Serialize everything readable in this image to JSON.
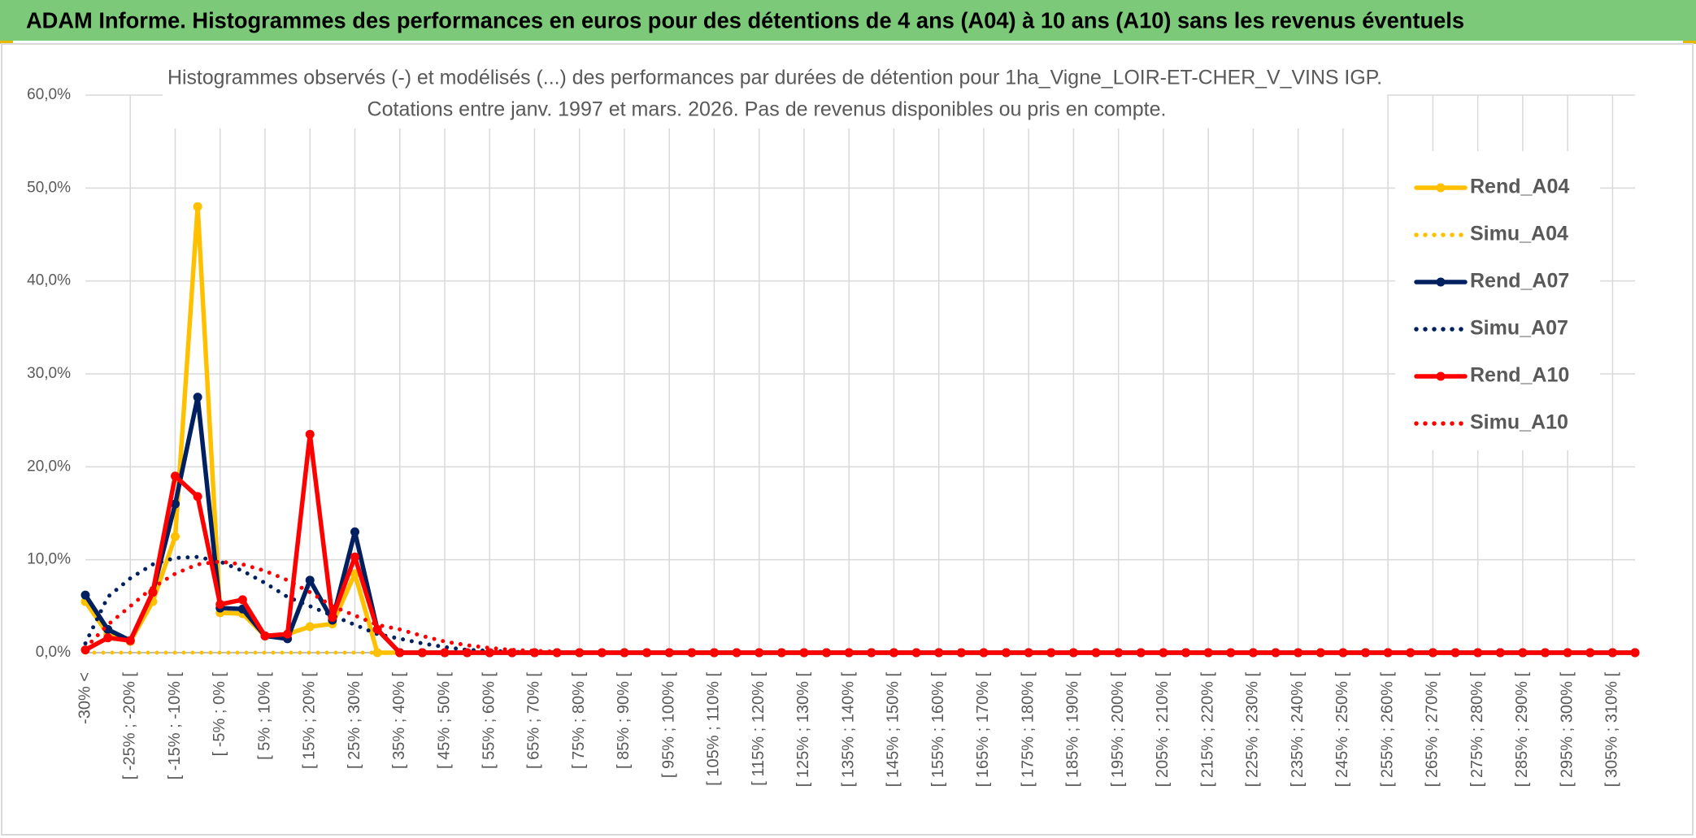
{
  "header_title": "ADAM Informe. Histogrammes des performances en euros pour des détentions de 4 ans (A04) à 10 ans (A10) sans les revenus éventuels",
  "chart_data": {
    "type": "line",
    "title": "Histogrammes observés (-) et modélisés (...) des performances par durées de détention pour 1ha_Vigne_LOIR-ET-CHER_V_VINS IGP.",
    "subtitle": "Cotations entre janv. 1997 et mars. 2026. Pas de revenus disponibles ou pris en compte.",
    "categories": [
      "-30% <",
      null,
      "[ -25% ; -20% [",
      null,
      "[ -15% ; -10% [",
      null,
      "[ -5% ; 0% [",
      null,
      "[ 5% ; 10% [",
      null,
      "[ 15% ; 20% [",
      null,
      "[ 25% ; 30% [",
      null,
      "[ 35% ; 40% [",
      null,
      "[ 45% ; 50% [",
      null,
      "[ 55% ; 60% [",
      null,
      "[ 65% ; 70% [",
      null,
      "[ 75% ; 80% [",
      null,
      "[ 85% ; 90% [",
      null,
      "[ 95% ; 100% [",
      null,
      "[ 105% ; 110% [",
      null,
      "[ 115% ; 120% [",
      null,
      "[ 125% ; 130% [",
      null,
      "[ 135% ; 140% [",
      null,
      "[ 145% ; 150% [",
      null,
      "[ 155% ; 160% [",
      null,
      "[ 165% ; 170% [",
      null,
      "[ 175% ; 180% [",
      null,
      "[ 185% ; 190% [",
      null,
      "[ 195% ; 200% [",
      null,
      "[ 205% ; 210% [",
      null,
      "[ 215% ; 220% [",
      null,
      "[ 225% ; 230% [",
      null,
      "[ 235% ; 240% [",
      null,
      "[ 245% ; 250% [",
      null,
      "[ 255% ; 260% [",
      null,
      "[ 265% ; 270% [",
      null,
      "[ 275% ; 280% [",
      null,
      "[ 285% ; 290% [",
      null,
      "[ 295% ; 300% [",
      null,
      "[ 305% ; 310% [",
      null
    ],
    "series": [
      {
        "name": "Rend_A04",
        "color": "#ffc000",
        "line_style": "solid",
        "markers": true,
        "values": [
          5.5,
          2.0,
          1.2,
          5.5,
          12.5,
          48,
          4.3,
          4.2,
          1.8,
          2.0,
          2.8,
          3.1,
          8.5,
          0,
          0,
          0,
          0,
          0,
          0,
          0,
          0,
          0,
          0,
          0,
          0,
          0,
          0,
          0,
          0,
          0,
          0,
          0,
          0,
          0,
          0,
          0,
          0,
          0,
          0,
          0,
          0,
          0,
          0,
          0,
          0,
          0,
          0,
          0,
          0,
          0,
          0,
          0,
          0,
          0,
          0,
          0,
          0,
          0,
          0,
          0,
          0,
          0,
          0,
          0,
          0,
          0,
          0,
          0,
          0,
          0
        ]
      },
      {
        "name": "Simu_A04",
        "color": "#ffc000",
        "line_style": "dotted",
        "markers": false,
        "values": [
          0,
          0,
          0,
          0,
          0,
          0,
          0,
          0,
          0,
          0,
          0,
          0,
          0,
          0,
          0,
          0,
          0,
          0,
          0,
          0,
          0,
          0,
          0,
          0,
          0,
          0,
          0,
          0,
          0,
          0,
          0,
          0,
          0,
          0,
          0,
          0,
          0,
          0,
          0,
          0,
          0,
          0,
          0,
          0,
          0,
          0,
          0,
          0,
          0,
          0,
          0,
          0,
          0,
          0,
          0,
          0,
          0,
          0,
          0,
          0,
          0,
          0,
          0,
          0,
          0,
          0,
          0,
          0,
          0,
          0
        ]
      },
      {
        "name": "Rend_A07",
        "color": "#002060",
        "line_style": "solid",
        "markers": true,
        "values": [
          6.2,
          2.5,
          1.3,
          6.5,
          16,
          27.5,
          4.8,
          4.7,
          1.8,
          1.5,
          7.8,
          3.5,
          13,
          2.5,
          0,
          0,
          0,
          0,
          0,
          0,
          0,
          0,
          0,
          0,
          0,
          0,
          0,
          0,
          0,
          0,
          0,
          0,
          0,
          0,
          0,
          0,
          0,
          0,
          0,
          0,
          0,
          0,
          0,
          0,
          0,
          0,
          0,
          0,
          0,
          0,
          0,
          0,
          0,
          0,
          0,
          0,
          0,
          0,
          0,
          0,
          0,
          0,
          0,
          0,
          0,
          0,
          0,
          0,
          0,
          0
        ]
      },
      {
        "name": "Simu_A07",
        "color": "#002060",
        "line_style": "dotted",
        "markers": false,
        "values": [
          1,
          6,
          8,
          9.5,
          10.2,
          10.3,
          9.8,
          8.8,
          7.5,
          6,
          5,
          4,
          3,
          2,
          1.5,
          1.0,
          0.6,
          0.3,
          0.2,
          0.1,
          0,
          0,
          0,
          0,
          0,
          0,
          0,
          0,
          0,
          0,
          0,
          0,
          0,
          0,
          0,
          0,
          0,
          0,
          0,
          0,
          0,
          0,
          0,
          0,
          0,
          0,
          0,
          0,
          0,
          0,
          0,
          0,
          0,
          0,
          0,
          0,
          0,
          0,
          0,
          0,
          0,
          0,
          0,
          0,
          0,
          0,
          0,
          0,
          0,
          0
        ]
      },
      {
        "name": "Rend_A10",
        "color": "#ff0000",
        "line_style": "solid",
        "markers": true,
        "values": [
          0.3,
          1.6,
          1.3,
          6.5,
          19,
          16.8,
          5.2,
          5.7,
          1.8,
          2.0,
          23.5,
          3.8,
          10.3,
          2.5,
          0,
          0,
          0,
          0,
          0,
          0,
          0,
          0,
          0,
          0,
          0,
          0,
          0,
          0,
          0,
          0,
          0,
          0,
          0,
          0,
          0,
          0,
          0,
          0,
          0,
          0,
          0,
          0,
          0,
          0,
          0,
          0,
          0,
          0,
          0,
          0,
          0,
          0,
          0,
          0,
          0,
          0,
          0,
          0,
          0,
          0,
          0,
          0,
          0,
          0,
          0,
          0,
          0,
          0,
          0,
          0
        ]
      },
      {
        "name": "Simu_A10",
        "color": "#ff0000",
        "line_style": "dotted",
        "markers": false,
        "values": [
          0.5,
          3,
          5,
          7,
          8.5,
          9.5,
          9.8,
          9.5,
          8.8,
          7.8,
          6.5,
          5,
          4,
          3,
          2.5,
          1.8,
          1.2,
          0.8,
          0.5,
          0.3,
          0.2,
          0.1,
          0,
          0,
          0,
          0,
          0,
          0,
          0,
          0,
          0,
          0,
          0,
          0,
          0,
          0,
          0,
          0,
          0,
          0,
          0,
          0,
          0,
          0,
          0,
          0,
          0,
          0,
          0,
          0,
          0,
          0,
          0,
          0,
          0,
          0,
          0,
          0,
          0,
          0,
          0,
          0,
          0,
          0,
          0,
          0,
          0,
          0,
          0,
          0
        ]
      }
    ],
    "ylim": [
      0,
      60
    ],
    "yticks": [
      {
        "value": 0,
        "label": "0,0%"
      },
      {
        "value": 10,
        "label": "10,0%"
      },
      {
        "value": 20,
        "label": "20,0%"
      },
      {
        "value": 30,
        "label": "30,0%"
      },
      {
        "value": 40,
        "label": "40,0%"
      },
      {
        "value": 50,
        "label": "50,0%"
      },
      {
        "value": 60,
        "label": "60,0%"
      }
    ],
    "grid": true,
    "legend": "right"
  }
}
